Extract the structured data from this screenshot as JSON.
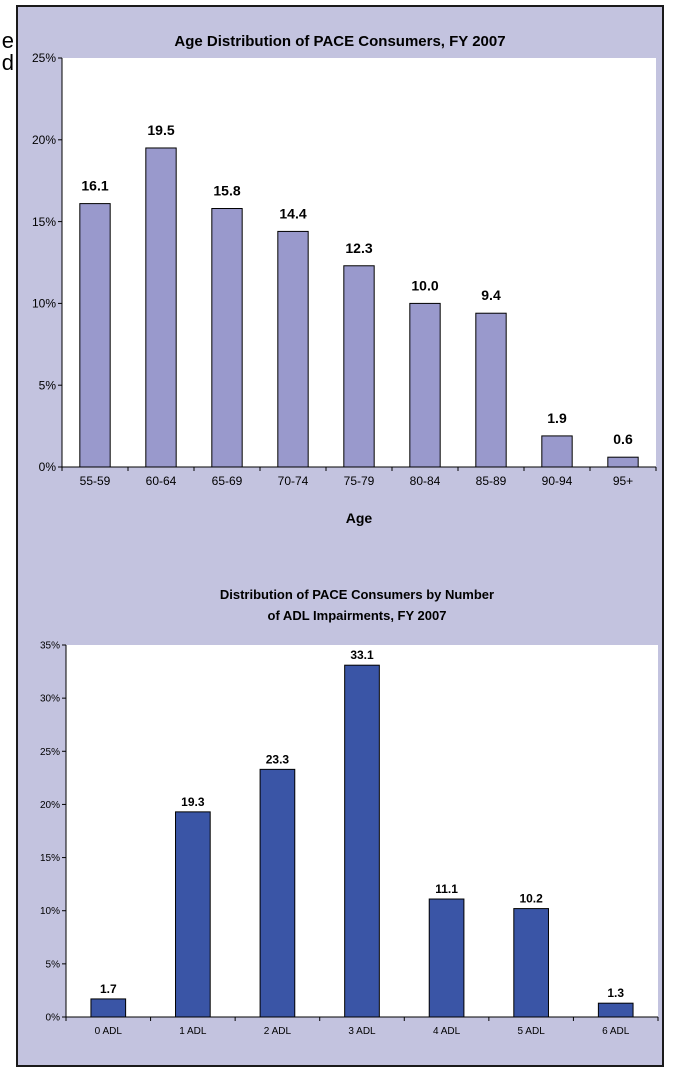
{
  "page": {
    "edge_text": [
      "e",
      "d"
    ]
  },
  "colors": {
    "panel_bg": "#c3c3df",
    "chart1_bar": "#9999cc",
    "chart2_bar": "#3a55a6"
  },
  "chart_data": [
    {
      "type": "bar",
      "title": "Age Distribution of PACE Consumers, FY 2007",
      "xlabel": "Age",
      "ylabel": "",
      "categories": [
        "55-59",
        "60-64",
        "65-69",
        "70-74",
        "75-79",
        "80-84",
        "85-89",
        "90-94",
        "95+"
      ],
      "values": [
        16.1,
        19.5,
        15.8,
        14.4,
        12.3,
        10.0,
        9.4,
        1.9,
        0.6
      ],
      "data_labels": [
        "16.1",
        "19.5",
        "15.8",
        "14.4",
        "12.3",
        "10.0",
        "9.4",
        "1.9",
        "0.6"
      ],
      "ylim": [
        0,
        25
      ],
      "yticks": [
        0,
        5,
        10,
        15,
        20,
        25
      ],
      "ytick_labels": [
        "0%",
        "5%",
        "10%",
        "15%",
        "20%",
        "25%"
      ],
      "grid": false,
      "legend": "none"
    },
    {
      "type": "bar",
      "title_lines": [
        "Distribution of PACE Consumers by Number",
        "of ADL Impairments, FY 2007"
      ],
      "xlabel": "",
      "ylabel": "",
      "categories": [
        "0 ADL",
        "1 ADL",
        "2 ADL",
        "3 ADL",
        "4 ADL",
        "5 ADL",
        "6 ADL"
      ],
      "values": [
        1.7,
        19.3,
        23.3,
        33.1,
        11.1,
        10.2,
        1.3
      ],
      "data_labels": [
        "1.7",
        "19.3",
        "23.3",
        "33.1",
        "11.1",
        "10.2",
        "1.3"
      ],
      "ylim": [
        0,
        35
      ],
      "yticks": [
        0,
        5,
        10,
        15,
        20,
        25,
        30,
        35
      ],
      "ytick_labels": [
        "0%",
        "5%",
        "10%",
        "15%",
        "20%",
        "25%",
        "30%",
        "35%"
      ],
      "grid": false,
      "legend": "none"
    }
  ]
}
